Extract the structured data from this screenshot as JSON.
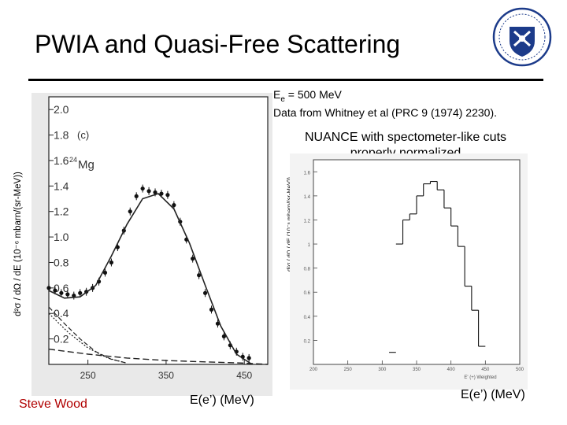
{
  "slide": {
    "title": "PWIA and Quasi-Free Scattering",
    "note_line1": "E",
    "note_line1_sub": "e",
    "note_line1_rest": " = 500 MeV",
    "note_line2": "Data from Whitney et al (PRC 9 (1974) 2230).",
    "note_nuance": "NUANCE with spectometer-like cuts properly normalized",
    "author": "Steve Wood",
    "xaxis_label_left": "E(e’) (MeV)",
    "xaxis_label_right": "E(e’) (MeV)",
    "ylabel_left": "d²σ / dΩ / dE (10⁻⁶ mbarn/(sr-MeV))",
    "ylabel_right": "d²σ / dΩ / dE (10⁻⁶ mbarn/(sr-MeV))",
    "accent_color": "#b00000"
  },
  "chart_data": [
    {
      "type": "scatter",
      "panel_label": "(c)",
      "isotope_mass": "24",
      "isotope_symbol": "Mg",
      "x_ticks": [
        "250",
        "350",
        "450"
      ],
      "y_ticks": [
        "2.0",
        "1.8",
        "1.6",
        "1.4",
        "1.2",
        "1.0",
        "0.8",
        "0.6",
        "0.4",
        "0.2"
      ],
      "xlim": [
        200,
        480
      ],
      "ylim": [
        0,
        2.1
      ],
      "series": [
        {
          "name": "data",
          "x": [
            200,
            208,
            216,
            224,
            232,
            240,
            248,
            256,
            264,
            272,
            280,
            288,
            296,
            304,
            312,
            320,
            328,
            336,
            344,
            352,
            360,
            368,
            376,
            384,
            392,
            400,
            408,
            416,
            424,
            432,
            440,
            448,
            456
          ],
          "y": [
            0.6,
            0.58,
            0.56,
            0.55,
            0.54,
            0.56,
            0.57,
            0.6,
            0.65,
            0.72,
            0.8,
            0.92,
            1.05,
            1.2,
            1.32,
            1.38,
            1.36,
            1.35,
            1.34,
            1.33,
            1.25,
            1.12,
            0.98,
            0.83,
            0.7,
            0.56,
            0.43,
            0.32,
            0.22,
            0.15,
            0.1,
            0.06,
            0.05
          ]
        },
        {
          "name": "total",
          "x": [
            200,
            220,
            240,
            260,
            280,
            300,
            320,
            340,
            360,
            380,
            400,
            420,
            440,
            460
          ],
          "y": [
            0.58,
            0.52,
            0.53,
            0.62,
            0.85,
            1.1,
            1.3,
            1.34,
            1.22,
            0.95,
            0.62,
            0.3,
            0.08,
            0.0
          ]
        },
        {
          "name": "component-1",
          "x": [
            200,
            220,
            240,
            260,
            280,
            300
          ],
          "y": [
            0.45,
            0.32,
            0.2,
            0.1,
            0.04,
            0.01
          ]
        },
        {
          "name": "component-2",
          "x": [
            200,
            225,
            250,
            275,
            300
          ],
          "y": [
            0.4,
            0.25,
            0.13,
            0.05,
            0.01
          ]
        },
        {
          "name": "component-3",
          "x": [
            200,
            250,
            300,
            350,
            400,
            450,
            480
          ],
          "y": [
            0.12,
            0.08,
            0.05,
            0.03,
            0.02,
            0.01,
            0.0
          ]
        }
      ]
    },
    {
      "type": "bar",
      "title": "",
      "xlabel": "E' (+) Weighted",
      "x_ticks": [
        "200",
        "250",
        "300",
        "350",
        "400",
        "450",
        "500"
      ],
      "y_ticks": [
        "1.6",
        "1.4",
        "1.2",
        "1",
        "0.8",
        "0.6",
        "0.4",
        "0.2"
      ],
      "xlim": [
        200,
        500
      ],
      "ylim": [
        0,
        1.7
      ],
      "histogram": {
        "edges": [
          310,
          320,
          330,
          340,
          350,
          360,
          370,
          380,
          390,
          400,
          410,
          420,
          430,
          440,
          450
        ],
        "values": [
          0.1,
          1.0,
          1.2,
          1.25,
          1.4,
          1.5,
          1.52,
          1.45,
          1.3,
          1.15,
          0.98,
          0.65,
          0.45,
          0.15
        ]
      }
    }
  ]
}
